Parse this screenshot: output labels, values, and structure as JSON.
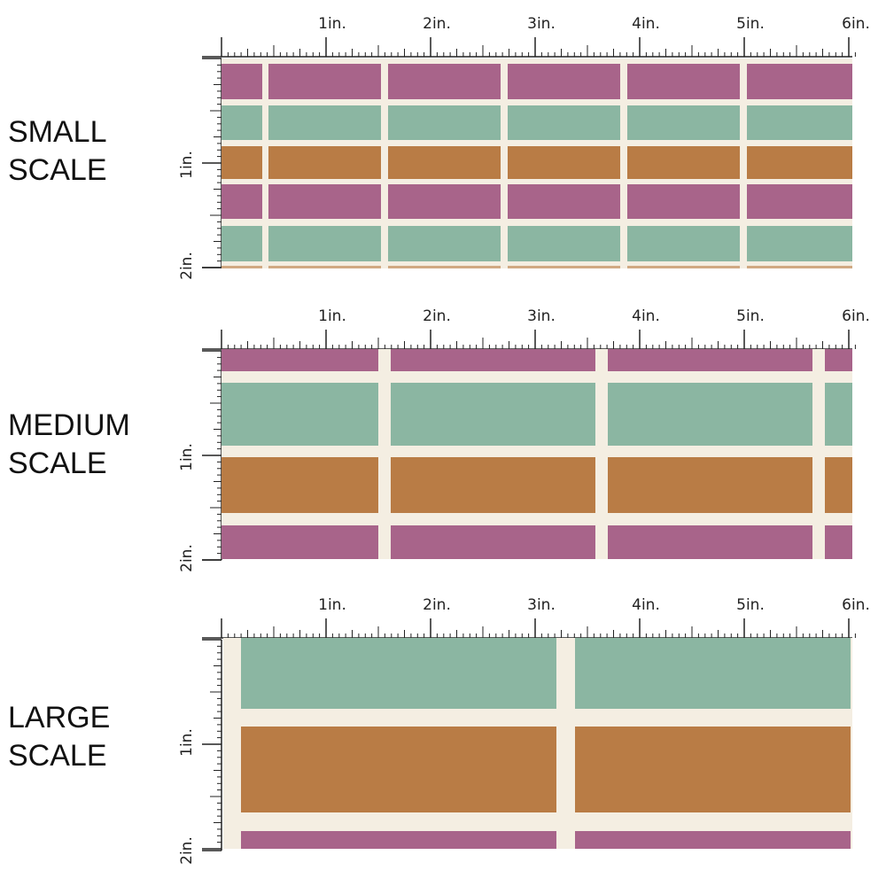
{
  "sections": [
    {
      "line1": "SMALL",
      "line2": "SCALE",
      "horizontal_labels": [
        "1in.",
        "2in.",
        "3in.",
        "4in.",
        "5in.",
        "6in."
      ],
      "vertical_labels": [
        "1in.",
        "2in."
      ]
    },
    {
      "line1": "MEDIUM",
      "line2": "SCALE",
      "horizontal_labels": [
        "1in.",
        "2in.",
        "3in.",
        "4in.",
        "5in.",
        "6in."
      ],
      "vertical_labels": [
        "1in.",
        "2in."
      ]
    },
    {
      "line1": "LARGE",
      "line2": "SCALE",
      "horizontal_labels": [
        "1in.",
        "2in.",
        "3in.",
        "4in.",
        "5in.",
        "6in."
      ],
      "vertical_labels": [
        "1in.",
        "2in."
      ]
    }
  ],
  "colors": {
    "plum": "#a8648a",
    "sage": "#8bb6a2",
    "caramel": "#b97c45",
    "cream": "#f4eee2",
    "ruler": "#222222"
  }
}
